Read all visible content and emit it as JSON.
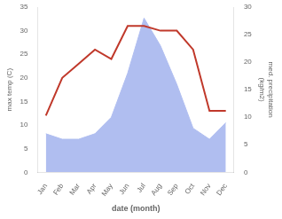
{
  "chart_data": {
    "type": "line",
    "xlabel": "date (month)",
    "ylabel": "max temp (C)",
    "y2label": "med. precipitation\n(kg/m2)",
    "categories": [
      "Jan",
      "Feb",
      "Mar",
      "Apr",
      "May",
      "Jun",
      "Jul",
      "Aug",
      "Sep",
      "Oct",
      "Nov",
      "Dec"
    ],
    "series": [
      {
        "type": "area",
        "color": "#b0bef0",
        "axis": "y2",
        "values": [
          7,
          6,
          6,
          7,
          10,
          18,
          28,
          23,
          16,
          8,
          6,
          9
        ]
      },
      {
        "type": "line",
        "color": "#c0392b",
        "values": [
          12,
          20,
          23,
          26,
          24,
          31,
          31,
          30,
          30,
          26,
          13,
          13
        ]
      }
    ],
    "ylim": [
      0,
      35
    ],
    "yticks": [
      0,
      5,
      10,
      15,
      20,
      25,
      30,
      35
    ],
    "y2lim": [
      0,
      30
    ],
    "y2ticks": [
      0,
      5,
      10,
      15,
      20,
      25,
      30
    ],
    "grid": false
  }
}
